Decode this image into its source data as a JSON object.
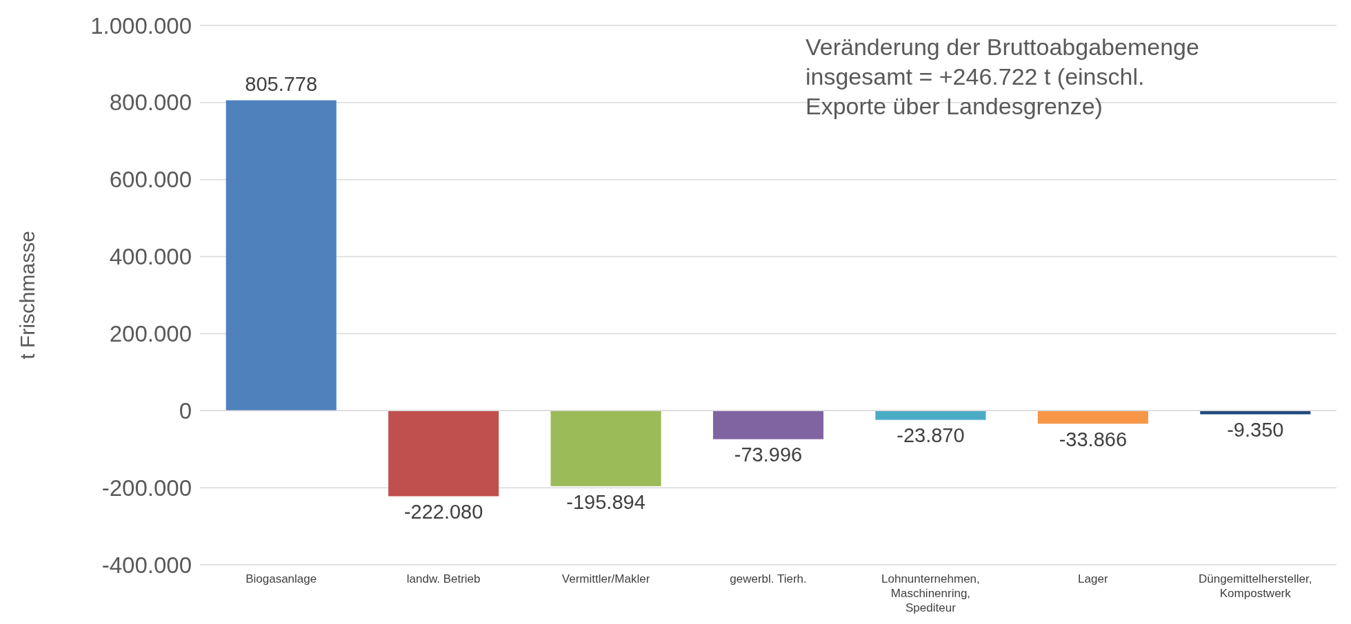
{
  "chart_data": {
    "type": "bar",
    "ylabel": "t Frischmasse",
    "categories": [
      "Biogasanlage",
      "landw. Betrieb",
      "Vermittler/Makler",
      "gewerbl. Tierh.",
      "Lohnunternehmen, Maschinenring, Spediteur",
      "Lager",
      "Düngemittelhersteller, Kompostwerk"
    ],
    "values": [
      805778,
      -222080,
      -195894,
      -73996,
      -23870,
      -33866,
      -9350
    ],
    "colors": [
      "#4f81bd",
      "#c0504d",
      "#9bbb59",
      "#8064a2",
      "#4bacc6",
      "#f79646",
      "#1f497d"
    ],
    "value_labels": [
      "805.778",
      "-222.080",
      "-195.894",
      "-73.996",
      "-23.870",
      "-33.866",
      "-9.350"
    ],
    "ylim": [
      -400000,
      1000000
    ],
    "yticks": [
      {
        "value": -400000,
        "label": "-400.000"
      },
      {
        "value": -200000,
        "label": "-200.000"
      },
      {
        "value": 0,
        "label": "0"
      },
      {
        "value": 200000,
        "label": "200.000"
      },
      {
        "value": 400000,
        "label": "400.000"
      },
      {
        "value": 600000,
        "label": "600.000"
      },
      {
        "value": 800000,
        "label": "800.000"
      },
      {
        "value": 1000000,
        "label": "1.000.000"
      }
    ],
    "grid": "y",
    "annotations": [
      "Veränderung der Bruttoabgabemenge insgesamt = +246.722 t (einschl. Exporte über Landesgrenze)"
    ]
  }
}
